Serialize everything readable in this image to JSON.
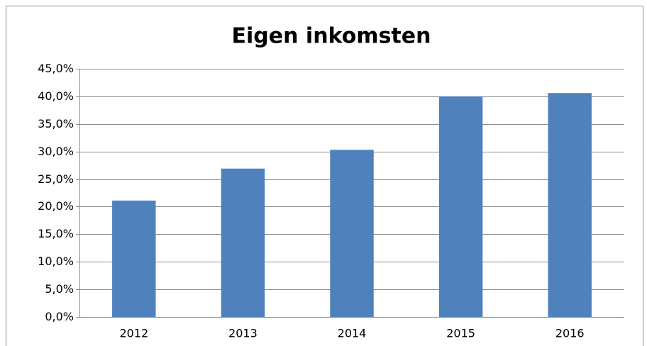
{
  "chart_data": {
    "type": "bar",
    "title": "Eigen inkomsten",
    "categories": [
      "2012",
      "2013",
      "2014",
      "2015",
      "2016"
    ],
    "values": [
      21.1,
      26.9,
      30.3,
      40.0,
      40.6
    ],
    "color": "#4f81bd",
    "ylim": [
      0,
      45
    ],
    "yticks": [
      {
        "value": 0,
        "label": "0,0%"
      },
      {
        "value": 5,
        "label": "5,0%"
      },
      {
        "value": 10,
        "label": "10,0%"
      },
      {
        "value": 15,
        "label": "15,0%"
      },
      {
        "value": 20,
        "label": "20,0%"
      },
      {
        "value": 25,
        "label": "25,0%"
      },
      {
        "value": 30,
        "label": "30,0%"
      },
      {
        "value": 35,
        "label": "35,0%"
      },
      {
        "value": 40,
        "label": "40,0%"
      },
      {
        "value": 45,
        "label": "45,0%"
      }
    ],
    "grid": true
  }
}
